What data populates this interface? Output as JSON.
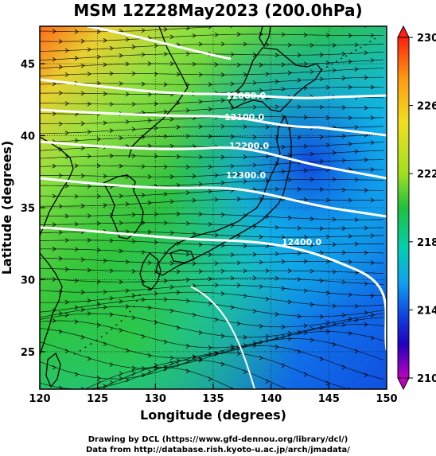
{
  "title": "MSM 12Z28May2023 (200.0hPa)",
  "map": {
    "lon_range": [
      120,
      150
    ],
    "lat_range": [
      22.4,
      47.6
    ],
    "x_ticks": [
      "120",
      "125",
      "130",
      "135",
      "140",
      "145",
      "150"
    ],
    "y_ticks": [
      "25",
      "30",
      "35",
      "40",
      "45"
    ],
    "xlabel": "Longitude (degrees)",
    "ylabel": "Latitude  (degrees)",
    "contour_labels": [
      "12000.0",
      "12100.0",
      "12200.0",
      "12300.0",
      "12400.0"
    ],
    "field_colors": [
      "#ff6a1a",
      "#8fe040",
      "#2ec040",
      "#10c0e0",
      "#1050e0"
    ],
    "contour_color": "#ffffff",
    "coastline_color": "#000000"
  },
  "colorbar": {
    "labels": [
      "230",
      "226",
      "222",
      "218",
      "214",
      "210"
    ],
    "colors": [
      "#ff2010",
      "#ff9a10",
      "#f0e020",
      "#a0e020",
      "#20c040",
      "#00d0b0",
      "#10a0f0",
      "#1040e0",
      "#2000c0",
      "#c000c0"
    ]
  },
  "credits": {
    "line1": "Drawing by DCL (https://www.gfd-dennou.org/library/dcl/)",
    "line2": "Data from http://database.rish.kyoto-u.ac.jp/arch/jmadata/"
  }
}
